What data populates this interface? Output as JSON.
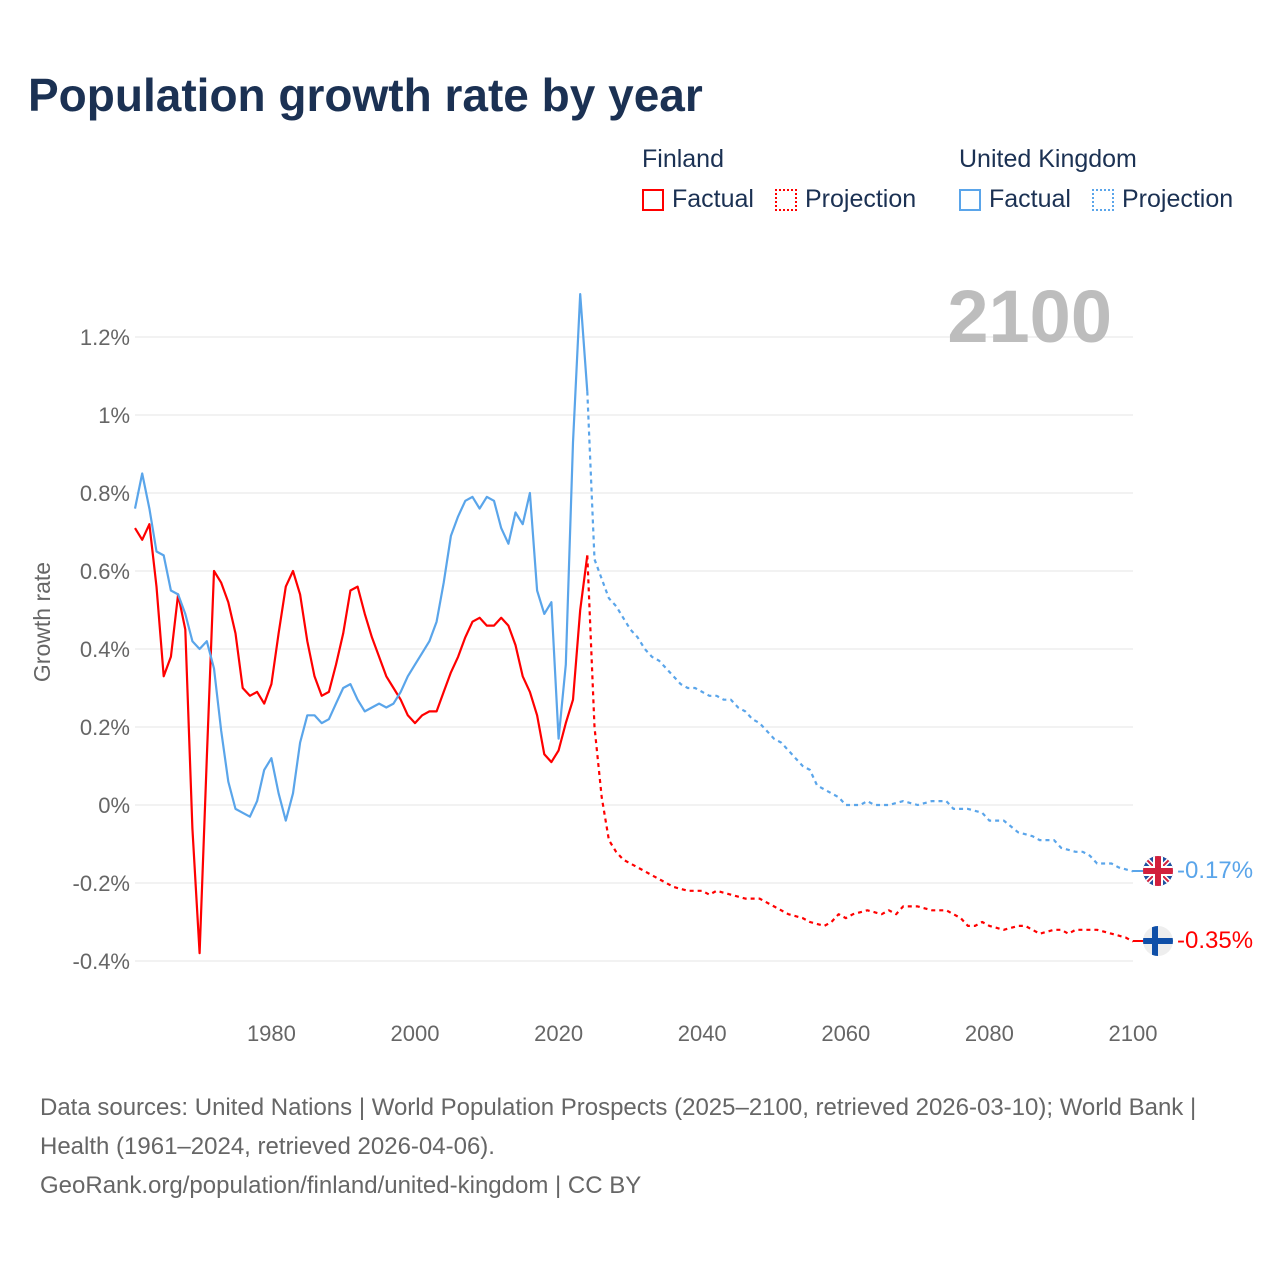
{
  "title": "Population growth rate by year",
  "legend": {
    "groups": [
      {
        "name": "Finland",
        "factual": "Factual",
        "projection": "Projection",
        "color": "#ff0000"
      },
      {
        "name": "United Kingdom",
        "factual": "Factual",
        "projection": "Projection",
        "color": "#5aa5ea"
      }
    ]
  },
  "year_label": "2100",
  "end_labels": {
    "uk": "-0.17%",
    "finland": "-0.35%"
  },
  "footer": {
    "line1": "Data sources: United Nations | World Population Prospects (2025–2100, retrieved 2026-03-10); World Bank | Health (1961–2024, retrieved 2026-04-06).",
    "line2": "GeoRank.org/population/finland/united-kingdom | CC BY"
  },
  "chart_data": {
    "type": "line",
    "title": "Population growth rate by year",
    "xlabel": "",
    "ylabel": "Growth rate",
    "xlim": [
      1961,
      2100
    ],
    "ylim": [
      -0.4,
      1.2
    ],
    "x_ticks": [
      1980,
      2000,
      2020,
      2040,
      2060,
      2080,
      2100
    ],
    "y_ticks": [
      -0.4,
      -0.2,
      0,
      0.2,
      0.4,
      0.6,
      0.8,
      1,
      1.2
    ],
    "y_tick_labels": [
      "-0.4%",
      "-0.2%",
      "0%",
      "0.2%",
      "0.4%",
      "0.6%",
      "0.8%",
      "1%",
      "1.2%"
    ],
    "grid": true,
    "series": [
      {
        "name": "Finland Factual",
        "color": "#ff0000",
        "style": "solid",
        "start_year": 1961,
        "values": [
          0.71,
          0.68,
          0.72,
          0.56,
          0.33,
          0.38,
          0.54,
          0.45,
          -0.06,
          -0.38,
          0.12,
          0.6,
          0.57,
          0.52,
          0.44,
          0.3,
          0.28,
          0.29,
          0.26,
          0.31,
          0.44,
          0.56,
          0.6,
          0.54,
          0.42,
          0.33,
          0.28,
          0.29,
          0.36,
          0.44,
          0.55,
          0.56,
          0.49,
          0.43,
          0.38,
          0.33,
          0.3,
          0.27,
          0.23,
          0.21,
          0.23,
          0.24,
          0.24,
          0.29,
          0.34,
          0.38,
          0.43,
          0.47,
          0.48,
          0.46,
          0.46,
          0.48,
          0.46,
          0.41,
          0.33,
          0.29,
          0.23,
          0.13,
          0.11,
          0.14,
          0.21,
          0.27,
          0.5,
          0.64
        ]
      },
      {
        "name": "United Kingdom Factual",
        "color": "#5aa5ea",
        "style": "solid",
        "start_year": 1961,
        "values": [
          0.76,
          0.85,
          0.76,
          0.65,
          0.64,
          0.55,
          0.54,
          0.49,
          0.42,
          0.4,
          0.42,
          0.35,
          0.19,
          0.06,
          -0.01,
          -0.02,
          -0.03,
          0.01,
          0.09,
          0.12,
          0.03,
          -0.04,
          0.03,
          0.16,
          0.23,
          0.23,
          0.21,
          0.22,
          0.26,
          0.3,
          0.31,
          0.27,
          0.24,
          0.25,
          0.26,
          0.25,
          0.26,
          0.29,
          0.33,
          0.36,
          0.39,
          0.42,
          0.47,
          0.57,
          0.69,
          0.74,
          0.78,
          0.79,
          0.76,
          0.79,
          0.78,
          0.71,
          0.67,
          0.75,
          0.72,
          0.8,
          0.55,
          0.49,
          0.52,
          0.17,
          0.36,
          0.93,
          1.31,
          1.06
        ]
      },
      {
        "name": "Finland Projection",
        "color": "#ff0000",
        "style": "dotted",
        "points": [
          [
            2024,
            0.64
          ],
          [
            2025,
            0.2
          ],
          [
            2026,
            0.02
          ],
          [
            2027,
            -0.09
          ],
          [
            2028,
            -0.12
          ],
          [
            2029,
            -0.14
          ],
          [
            2030,
            -0.15
          ],
          [
            2031,
            -0.16
          ],
          [
            2032,
            -0.17
          ],
          [
            2033,
            -0.18
          ],
          [
            2034,
            -0.19
          ],
          [
            2035,
            -0.2
          ],
          [
            2036,
            -0.21
          ],
          [
            2038,
            -0.22
          ],
          [
            2040,
            -0.22
          ],
          [
            2041,
            -0.23
          ],
          [
            2042,
            -0.22
          ],
          [
            2044,
            -0.23
          ],
          [
            2046,
            -0.24
          ],
          [
            2048,
            -0.24
          ],
          [
            2050,
            -0.26
          ],
          [
            2052,
            -0.28
          ],
          [
            2054,
            -0.29
          ],
          [
            2055,
            -0.3
          ],
          [
            2057,
            -0.31
          ],
          [
            2058,
            -0.3
          ],
          [
            2059,
            -0.28
          ],
          [
            2060,
            -0.29
          ],
          [
            2061,
            -0.28
          ],
          [
            2063,
            -0.27
          ],
          [
            2065,
            -0.28
          ],
          [
            2066,
            -0.27
          ],
          [
            2067,
            -0.28
          ],
          [
            2068,
            -0.26
          ],
          [
            2070,
            -0.26
          ],
          [
            2072,
            -0.27
          ],
          [
            2074,
            -0.27
          ],
          [
            2076,
            -0.29
          ],
          [
            2077,
            -0.31
          ],
          [
            2078,
            -0.31
          ],
          [
            2079,
            -0.3
          ],
          [
            2080,
            -0.31
          ],
          [
            2082,
            -0.32
          ],
          [
            2084,
            -0.31
          ],
          [
            2085,
            -0.31
          ],
          [
            2087,
            -0.33
          ],
          [
            2089,
            -0.32
          ],
          [
            2090,
            -0.32
          ],
          [
            2091,
            -0.33
          ],
          [
            2092,
            -0.32
          ],
          [
            2095,
            -0.32
          ],
          [
            2097,
            -0.33
          ],
          [
            2099,
            -0.34
          ],
          [
            2100,
            -0.35
          ]
        ]
      },
      {
        "name": "United Kingdom Projection",
        "color": "#5aa5ea",
        "style": "dotted",
        "points": [
          [
            2024,
            1.06
          ],
          [
            2025,
            0.63
          ],
          [
            2026,
            0.58
          ],
          [
            2027,
            0.53
          ],
          [
            2028,
            0.51
          ],
          [
            2029,
            0.48
          ],
          [
            2030,
            0.45
          ],
          [
            2031,
            0.43
          ],
          [
            2032,
            0.4
          ],
          [
            2033,
            0.38
          ],
          [
            2034,
            0.37
          ],
          [
            2035,
            0.35
          ],
          [
            2036,
            0.33
          ],
          [
            2037,
            0.31
          ],
          [
            2038,
            0.3
          ],
          [
            2039,
            0.3
          ],
          [
            2040,
            0.29
          ],
          [
            2041,
            0.28
          ],
          [
            2042,
            0.28
          ],
          [
            2043,
            0.27
          ],
          [
            2044,
            0.27
          ],
          [
            2045,
            0.25
          ],
          [
            2046,
            0.24
          ],
          [
            2047,
            0.22
          ],
          [
            2048,
            0.21
          ],
          [
            2049,
            0.19
          ],
          [
            2050,
            0.17
          ],
          [
            2051,
            0.16
          ],
          [
            2052,
            0.14
          ],
          [
            2053,
            0.12
          ],
          [
            2054,
            0.1
          ],
          [
            2055,
            0.09
          ],
          [
            2056,
            0.05
          ],
          [
            2057,
            0.04
          ],
          [
            2058,
            0.03
          ],
          [
            2059,
            0.02
          ],
          [
            2060,
            0.0
          ],
          [
            2062,
            0.0
          ],
          [
            2063,
            0.01
          ],
          [
            2064,
            0.0
          ],
          [
            2066,
            0.0
          ],
          [
            2068,
            0.01
          ],
          [
            2070,
            0.0
          ],
          [
            2072,
            0.01
          ],
          [
            2074,
            0.01
          ],
          [
            2075,
            -0.01
          ],
          [
            2077,
            -0.01
          ],
          [
            2079,
            -0.02
          ],
          [
            2080,
            -0.04
          ],
          [
            2082,
            -0.04
          ],
          [
            2084,
            -0.07
          ],
          [
            2086,
            -0.08
          ],
          [
            2087,
            -0.09
          ],
          [
            2089,
            -0.09
          ],
          [
            2090,
            -0.11
          ],
          [
            2092,
            -0.12
          ],
          [
            2093,
            -0.12
          ],
          [
            2094,
            -0.13
          ],
          [
            2095,
            -0.15
          ],
          [
            2097,
            -0.15
          ],
          [
            2098,
            -0.16
          ],
          [
            2100,
            -0.17
          ]
        ]
      }
    ]
  }
}
